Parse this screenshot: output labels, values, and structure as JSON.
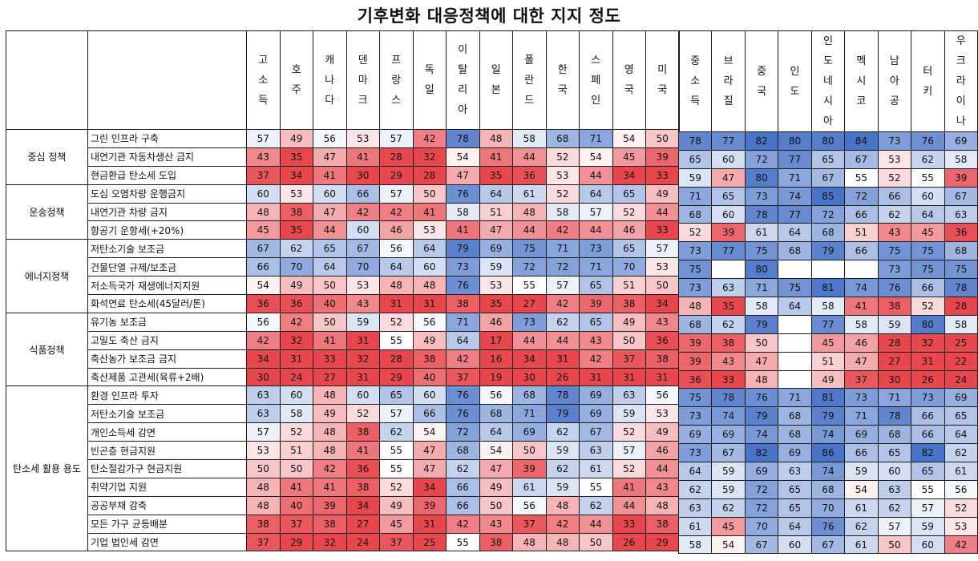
{
  "title": "기후변화 대응정책에 대한 지지 정도",
  "chart_data": {
    "type": "heatmap",
    "title": "기후변화 대응정책에 대한 지지 정도",
    "color_scale": {
      "low": "#e8474e",
      "mid": "#ffffff",
      "high": "#4a74c8"
    },
    "groups": [
      {
        "name": "고소득",
        "countries": [
          "고소득",
          "호주",
          "캐나다",
          "덴마크",
          "프랑스",
          "독일",
          "이탈리아",
          "일본",
          "폴란드",
          "한국",
          "스페인",
          "영국",
          "미국"
        ]
      },
      {
        "name": "중소득",
        "countries": [
          "중소득",
          "브라질",
          "중국",
          "인도",
          "인도네시아",
          "멕시코",
          "남아공",
          "터키",
          "우크라이나"
        ]
      }
    ],
    "categories": [
      {
        "name": "중심 정책",
        "policies": [
          "그린 인프라 구축",
          "내연기관 자동차생산 금지",
          "현금환급 탄소세 도입"
        ]
      },
      {
        "name": "운송정책",
        "policies": [
          "도심 오염차량 운행금지",
          "내연기관 차량 금지",
          "항공기 운항세(+20%)"
        ]
      },
      {
        "name": "에너지정책",
        "policies": [
          "저탄소기술 보조금",
          "건물단열 규제/보조금",
          "저소득국가 재생에너지지원",
          "화석연료 탄소세(45달러/톤)"
        ]
      },
      {
        "name": "식품정책",
        "policies": [
          "유기농 보조금",
          "고밀도 축산 금지",
          "축산농가 보조금 금지",
          "축산제품 고관세(육류+2배)"
        ]
      },
      {
        "name": "탄소세 활용 용도",
        "policies": [
          "환경 인프라 투자",
          "저탄소기술 보조금",
          "개인소득세 감면",
          "빈곤층 현금지원",
          "탄소절감가구 현금지원",
          "취약기업 지원",
          "공공부채 감축",
          "모든 가구 균등배분",
          "기업 법인세 감면"
        ]
      }
    ],
    "values": [
      [
        57,
        49,
        56,
        53,
        57,
        42,
        78,
        48,
        58,
        68,
        71,
        54,
        50,
        78,
        77,
        82,
        80,
        80,
        84,
        73,
        76,
        69
      ],
      [
        43,
        35,
        47,
        41,
        28,
        32,
        54,
        41,
        44,
        52,
        54,
        45,
        39,
        65,
        60,
        72,
        77,
        65,
        67,
        53,
        62,
        58
      ],
      [
        37,
        34,
        41,
        30,
        29,
        28,
        47,
        35,
        36,
        53,
        44,
        34,
        33,
        59,
        47,
        80,
        71,
        67,
        55,
        52,
        55,
        39
      ],
      [
        60,
        53,
        60,
        66,
        57,
        50,
        76,
        64,
        61,
        52,
        64,
        65,
        49,
        71,
        65,
        73,
        74,
        85,
        72,
        66,
        60,
        67
      ],
      [
        48,
        38,
        47,
        42,
        42,
        41,
        58,
        51,
        48,
        58,
        57,
        52,
        44,
        68,
        60,
        78,
        77,
        72,
        66,
        62,
        64,
        63
      ],
      [
        45,
        35,
        44,
        60,
        46,
        53,
        41,
        47,
        44,
        42,
        44,
        46,
        33,
        52,
        39,
        61,
        64,
        68,
        51,
        43,
        45,
        36
      ],
      [
        67,
        62,
        65,
        67,
        56,
        64,
        79,
        69,
        75,
        71,
        73,
        65,
        57,
        73,
        77,
        75,
        68,
        79,
        66,
        75,
        75,
        68
      ],
      [
        66,
        70,
        64,
        70,
        64,
        60,
        73,
        59,
        72,
        72,
        71,
        70,
        53,
        75,
        null,
        80,
        null,
        null,
        null,
        73,
        75,
        75
      ],
      [
        54,
        49,
        50,
        53,
        48,
        48,
        76,
        53,
        55,
        57,
        65,
        51,
        50,
        73,
        63,
        71,
        75,
        81,
        74,
        76,
        66,
        78
      ],
      [
        36,
        36,
        40,
        43,
        31,
        31,
        38,
        35,
        27,
        42,
        39,
        38,
        34,
        48,
        35,
        58,
        64,
        58,
        41,
        38,
        52,
        28
      ],
      [
        56,
        42,
        50,
        59,
        52,
        56,
        71,
        46,
        73,
        62,
        65,
        49,
        43,
        68,
        62,
        79,
        null,
        77,
        58,
        59,
        80,
        58
      ],
      [
        42,
        32,
        41,
        31,
        55,
        49,
        64,
        17,
        44,
        44,
        43,
        50,
        36,
        39,
        38,
        50,
        null,
        45,
        46,
        28,
        32,
        25
      ],
      [
        34,
        31,
        33,
        32,
        28,
        38,
        42,
        16,
        34,
        31,
        42,
        37,
        38,
        39,
        43,
        47,
        null,
        51,
        47,
        27,
        31,
        22
      ],
      [
        30,
        24,
        27,
        31,
        29,
        40,
        37,
        19,
        30,
        26,
        31,
        31,
        31,
        36,
        33,
        48,
        null,
        49,
        37,
        30,
        26,
        24
      ],
      [
        63,
        60,
        48,
        60,
        65,
        60,
        76,
        56,
        68,
        78,
        69,
        63,
        56,
        75,
        78,
        76,
        71,
        81,
        73,
        71,
        73,
        69
      ],
      [
        63,
        58,
        49,
        52,
        57,
        66,
        76,
        68,
        71,
        79,
        69,
        59,
        53,
        73,
        74,
        79,
        68,
        79,
        71,
        78,
        66,
        65
      ],
      [
        57,
        52,
        48,
        38,
        62,
        54,
        72,
        64,
        69,
        62,
        67,
        52,
        49,
        69,
        69,
        74,
        68,
        74,
        69,
        68,
        66,
        64
      ],
      [
        53,
        51,
        48,
        41,
        55,
        47,
        68,
        54,
        50,
        59,
        63,
        57,
        46,
        73,
        67,
        82,
        69,
        86,
        66,
        65,
        82,
        62
      ],
      [
        50,
        50,
        42,
        36,
        55,
        47,
        62,
        47,
        39,
        62,
        61,
        52,
        44,
        64,
        59,
        69,
        63,
        74,
        59,
        60,
        65,
        61
      ],
      [
        48,
        41,
        41,
        38,
        52,
        34,
        66,
        49,
        61,
        59,
        55,
        41,
        43,
        62,
        59,
        72,
        65,
        68,
        54,
        63,
        55,
        56
      ],
      [
        48,
        40,
        39,
        34,
        49,
        39,
        66,
        50,
        56,
        48,
        62,
        44,
        48,
        63,
        62,
        72,
        65,
        70,
        61,
        62,
        57,
        52
      ],
      [
        38,
        37,
        38,
        27,
        45,
        31,
        42,
        43,
        37,
        42,
        44,
        33,
        38,
        61,
        45,
        70,
        64,
        76,
        62,
        57,
        59,
        53
      ],
      [
        37,
        29,
        32,
        24,
        37,
        25,
        55,
        38,
        48,
        48,
        50,
        26,
        29,
        58,
        54,
        67,
        60,
        67,
        61,
        50,
        60,
        42
      ]
    ]
  }
}
